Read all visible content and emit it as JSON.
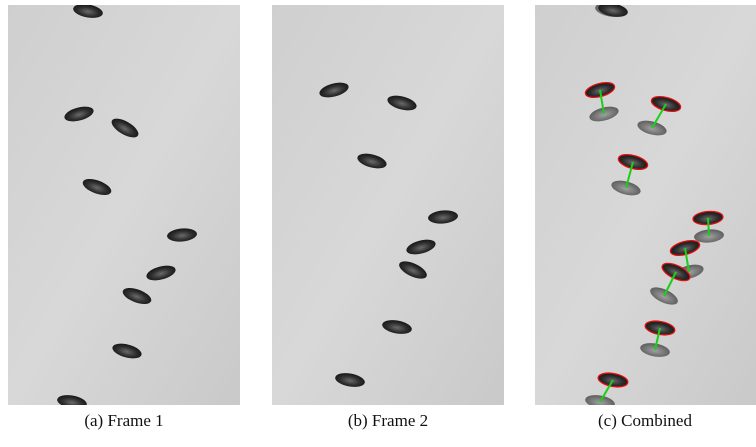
{
  "figure": {
    "captions": [
      "(a) Frame 1",
      "(b) Frame 2",
      "(c) Combined"
    ]
  }
}
